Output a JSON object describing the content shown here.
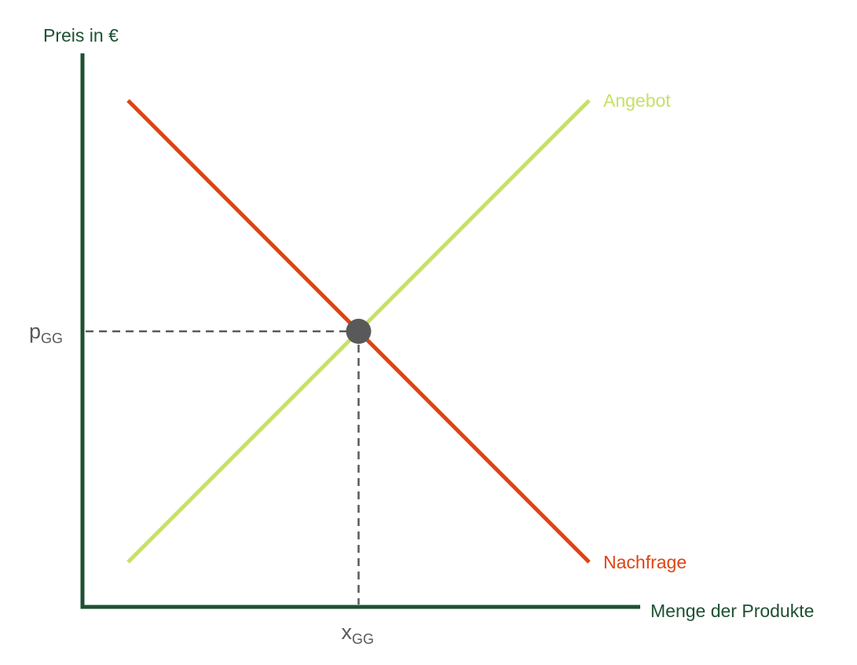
{
  "chart_data": {
    "type": "line",
    "title": "",
    "xlabel": "Menge der Produkte",
    "ylabel": "Preis in €",
    "xlim": [
      0,
      10
    ],
    "ylim": [
      0,
      10
    ],
    "grid": false,
    "series": [
      {
        "name": "Angebot",
        "x": [
          1,
          9
        ],
        "y": [
          1,
          9
        ],
        "color": "#c5e264"
      },
      {
        "name": "Nachfrage",
        "x": [
          1,
          9
        ],
        "y": [
          9,
          1
        ],
        "color": "#dd4412"
      }
    ],
    "equilibrium": {
      "x": 5,
      "y": 5,
      "x_label_main": "x",
      "x_label_sub": "GG",
      "y_label_main": "p",
      "y_label_sub": "GG",
      "color": "#595959"
    },
    "colors": {
      "axis": "#1d5131",
      "guide": "#595959"
    }
  }
}
